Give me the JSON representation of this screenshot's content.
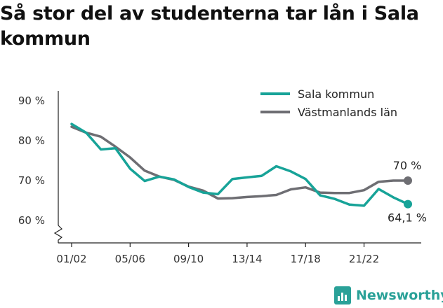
{
  "title": "Så stor del av studenterna tar lån i Sala kommun",
  "brand": {
    "name": "Newsworthy",
    "icon": "bar-chart-icon"
  },
  "chart_data": {
    "type": "line",
    "title": "Så stor del av studenterna tar lån i Sala kommun",
    "xlabel": "",
    "ylabel": "",
    "x": [
      "01/02",
      "02/03",
      "03/04",
      "04/05",
      "05/06",
      "06/07",
      "07/08",
      "08/09",
      "09/10",
      "10/11",
      "11/12",
      "12/13",
      "13/14",
      "14/15",
      "15/16",
      "16/17",
      "17/18",
      "18/19",
      "19/20",
      "20/21",
      "21/22",
      "22/23",
      "23/24",
      "24/25"
    ],
    "x_tick_labels": [
      "01/02",
      "05/06",
      "09/10",
      "13/14",
      "17/18",
      "21/22"
    ],
    "y_tick_labels": [
      "90 %",
      "80 %",
      "70 %",
      "60 %"
    ],
    "y_ticks": [
      90,
      80,
      70,
      60
    ],
    "ylim": [
      55,
      93
    ],
    "axis_break": true,
    "grid": false,
    "legend_position": "top-right",
    "series": [
      {
        "name": "Sala kommun",
        "color": "#17a398",
        "values": [
          84.2,
          82.0,
          77.8,
          78.1,
          73.0,
          69.9,
          71.0,
          70.3,
          68.4,
          67.0,
          66.6,
          70.4,
          70.8,
          71.2,
          73.6,
          72.3,
          70.4,
          66.3,
          65.4,
          64.0,
          63.7,
          67.9,
          65.8,
          64.1
        ],
        "end_label": "64,1 %"
      },
      {
        "name": "Västmanlands län",
        "color": "#6e6e73",
        "values": [
          83.5,
          82.0,
          81.0,
          78.5,
          75.8,
          72.5,
          71.0,
          70.2,
          68.5,
          67.5,
          65.5,
          65.6,
          65.9,
          66.1,
          66.4,
          67.8,
          68.3,
          67.0,
          66.9,
          66.9,
          67.6,
          69.7,
          70.0,
          70.0
        ],
        "end_label": "70 %"
      }
    ]
  }
}
